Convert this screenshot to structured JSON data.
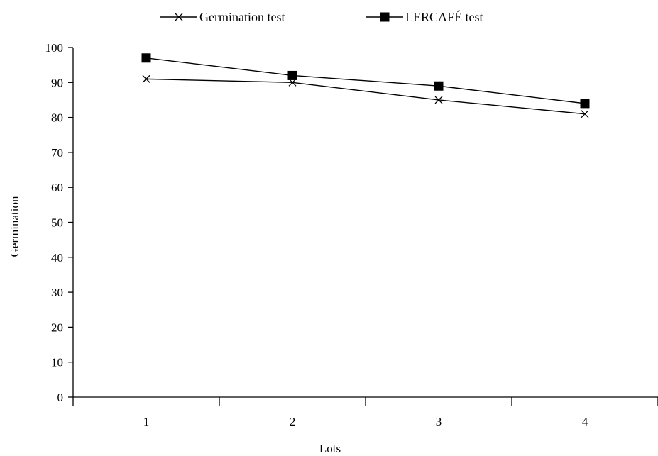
{
  "chart_data": {
    "type": "line",
    "title": "",
    "xlabel": "Lots",
    "ylabel": "Germination",
    "categories": [
      "1",
      "2",
      "3",
      "4"
    ],
    "ylim": [
      0,
      100
    ],
    "yticks": [
      0,
      10,
      20,
      30,
      40,
      50,
      60,
      70,
      80,
      90,
      100
    ],
    "grid": false,
    "legend_position": "top-center",
    "series": [
      {
        "name": "Germination test",
        "values": [
          91,
          90,
          85,
          81
        ],
        "marker": "x",
        "color": "#000000"
      },
      {
        "name": "LERCAFÉ test",
        "values": [
          97,
          92,
          89,
          84
        ],
        "marker": "filled-square",
        "color": "#000000"
      }
    ]
  }
}
